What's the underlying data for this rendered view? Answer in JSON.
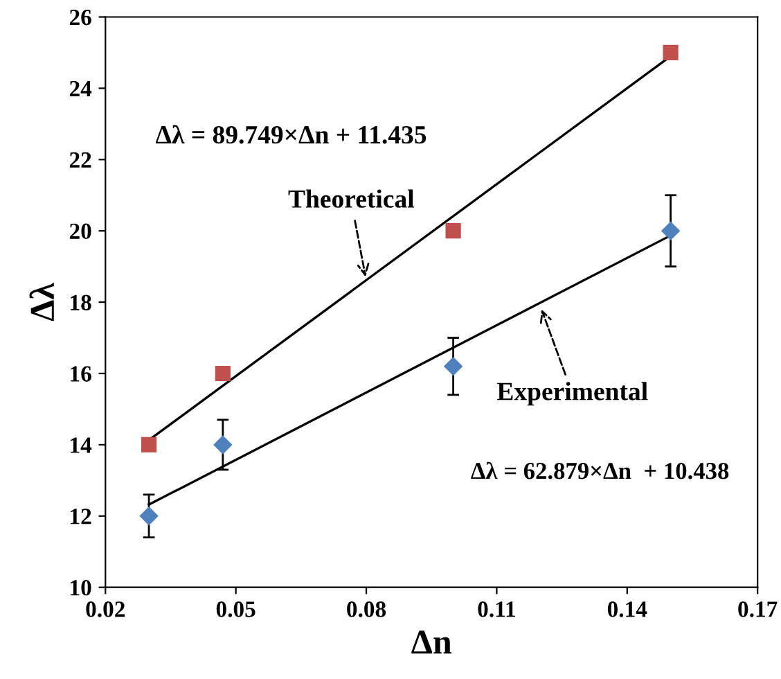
{
  "chart_data": {
    "type": "scatter",
    "xlabel": "Δn",
    "ylabel": "Δλ",
    "xlim": [
      0.02,
      0.17
    ],
    "xticks": [
      0.02,
      0.05,
      0.08,
      0.11,
      0.14,
      0.17
    ],
    "ylim": [
      10,
      26
    ],
    "yticks": [
      10,
      12,
      14,
      16,
      18,
      20,
      22,
      24,
      26
    ],
    "grid": false,
    "series": [
      {
        "marker": "square",
        "color": "#c0504d",
        "x": [
          0.03,
          0.047,
          0.1,
          0.15
        ],
        "values": [
          14,
          16,
          20,
          25
        ]
      },
      {
        "type": "scatter",
        "marker": "diamond",
        "color": "#4f81bd",
        "x": [
          0.03,
          0.047,
          0.1,
          0.15
        ],
        "values": [
          12,
          14,
          16.2,
          20
        ],
        "errors": [
          0.6,
          0.7,
          0.8,
          1.0
        ]
      },
      {
        "type": "line",
        "color": "#000000",
        "x": [
          0.03,
          0.15
        ],
        "values": [
          14.13,
          24.9
        ]
      },
      {
        "type": "line",
        "color": "#000000",
        "x": [
          0.03,
          0.15
        ],
        "values": [
          12.32,
          19.87
        ]
      }
    ],
    "annotations": [
      "Δλ = 89.749×Δn + 11.435",
      {
        "text": "Theoretical",
        "x": 0.08,
        "y": 18.6
      },
      {
        "text": "Experimental",
        "x": 0.12,
        "y": 17.9
      },
      "Δλ = 62.879×Δn  + 10.438"
    ]
  }
}
